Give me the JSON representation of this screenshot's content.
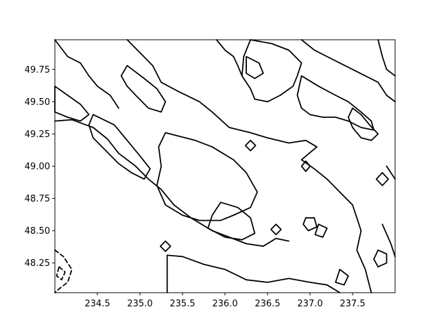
{
  "chart_data": {
    "type": "contour",
    "title": "",
    "xlabel": "",
    "ylabel": "",
    "xlim": [
      234.0,
      238.0
    ],
    "ylim": [
      48.02,
      49.98
    ],
    "xticks": [
      234.5,
      235.0,
      235.5,
      236.0,
      236.5,
      237.0,
      237.5
    ],
    "xtick_labels": [
      "234.5",
      "235.0",
      "235.5",
      "236.0",
      "236.5",
      "237.0",
      "237.5"
    ],
    "yticks": [
      48.25,
      48.5,
      48.75,
      49.0,
      49.25,
      49.5,
      49.75
    ],
    "ytick_labels": [
      "48.25",
      "48.50",
      "48.75",
      "49.00",
      "49.25",
      "49.50",
      "49.75"
    ],
    "grid": false,
    "line_color": "#000000",
    "contours": [
      {
        "style": "solid",
        "closed": false,
        "points": [
          [
            235.32,
            48.02
          ],
          [
            235.32,
            48.31
          ],
          [
            235.5,
            48.3
          ],
          [
            235.75,
            48.24
          ],
          [
            236.0,
            48.2
          ],
          [
            236.25,
            48.12
          ],
          [
            236.5,
            48.1
          ],
          [
            236.75,
            48.13
          ],
          [
            237.0,
            48.1
          ],
          [
            237.2,
            48.08
          ],
          [
            237.35,
            48.02
          ]
        ]
      },
      {
        "style": "solid",
        "closed": false,
        "points": [
          [
            234.0,
            49.35
          ],
          [
            234.2,
            49.36
          ],
          [
            234.45,
            49.3
          ],
          [
            234.62,
            49.21
          ],
          [
            234.75,
            49.1
          ],
          [
            234.95,
            49.0
          ],
          [
            235.1,
            48.9
          ],
          [
            235.25,
            48.82
          ],
          [
            235.4,
            48.7
          ],
          [
            235.6,
            48.6
          ],
          [
            235.85,
            48.5
          ],
          [
            236.05,
            48.45
          ],
          [
            236.25,
            48.4
          ],
          [
            236.45,
            48.38
          ],
          [
            236.6,
            48.44
          ],
          [
            236.75,
            48.42
          ]
        ]
      },
      {
        "style": "solid",
        "closed": false,
        "points": [
          [
            234.85,
            49.98
          ],
          [
            235.0,
            49.88
          ],
          [
            235.15,
            49.78
          ],
          [
            235.25,
            49.65
          ],
          [
            235.45,
            49.58
          ],
          [
            235.7,
            49.5
          ],
          [
            235.85,
            49.42
          ],
          [
            236.05,
            49.3
          ],
          [
            236.3,
            49.26
          ],
          [
            236.5,
            49.22
          ],
          [
            236.75,
            49.18
          ],
          [
            236.95,
            49.2
          ],
          [
            237.08,
            49.15
          ],
          [
            236.9,
            49.05
          ],
          [
            237.05,
            48.98
          ],
          [
            237.2,
            48.9
          ],
          [
            237.35,
            48.8
          ],
          [
            237.5,
            48.7
          ],
          [
            237.6,
            48.5
          ],
          [
            237.55,
            48.35
          ],
          [
            237.65,
            48.2
          ],
          [
            237.72,
            48.02
          ]
        ]
      },
      {
        "style": "solid",
        "closed": true,
        "points": [
          [
            235.3,
            49.26
          ],
          [
            235.65,
            49.2
          ],
          [
            235.85,
            49.15
          ],
          [
            236.1,
            49.05
          ],
          [
            236.25,
            48.95
          ],
          [
            236.38,
            48.8
          ],
          [
            236.3,
            48.68
          ],
          [
            236.1,
            48.62
          ],
          [
            235.95,
            48.58
          ],
          [
            235.7,
            48.58
          ],
          [
            235.5,
            48.62
          ],
          [
            235.3,
            48.7
          ],
          [
            235.2,
            48.85
          ],
          [
            235.25,
            49.0
          ],
          [
            235.22,
            49.15
          ]
        ]
      },
      {
        "style": "solid",
        "closed": true,
        "points": [
          [
            235.95,
            48.72
          ],
          [
            236.15,
            48.68
          ],
          [
            236.3,
            48.6
          ],
          [
            236.35,
            48.48
          ],
          [
            236.2,
            48.43
          ],
          [
            236.0,
            48.45
          ],
          [
            235.8,
            48.52
          ],
          [
            235.85,
            48.62
          ]
        ]
      },
      {
        "style": "solid",
        "closed": true,
        "points": [
          [
            234.45,
            49.4
          ],
          [
            234.7,
            49.32
          ],
          [
            234.85,
            49.2
          ],
          [
            235.0,
            49.08
          ],
          [
            235.12,
            48.98
          ],
          [
            235.05,
            48.9
          ],
          [
            234.9,
            48.95
          ],
          [
            234.75,
            49.02
          ],
          [
            234.6,
            49.12
          ],
          [
            234.45,
            49.22
          ],
          [
            234.4,
            49.32
          ]
        ]
      },
      {
        "style": "solid",
        "closed": true,
        "points": [
          [
            234.85,
            49.78
          ],
          [
            235.05,
            49.68
          ],
          [
            235.2,
            49.6
          ],
          [
            235.3,
            49.5
          ],
          [
            235.25,
            49.42
          ],
          [
            235.1,
            49.45
          ],
          [
            234.95,
            49.55
          ],
          [
            234.85,
            49.62
          ],
          [
            234.78,
            49.7
          ]
        ]
      },
      {
        "style": "solid",
        "closed": true,
        "points": [
          [
            236.3,
            49.98
          ],
          [
            236.55,
            49.95
          ],
          [
            236.75,
            49.9
          ],
          [
            236.9,
            49.8
          ],
          [
            236.85,
            49.7
          ],
          [
            236.8,
            49.62
          ],
          [
            236.65,
            49.55
          ],
          [
            236.5,
            49.5
          ],
          [
            236.35,
            49.52
          ],
          [
            236.3,
            49.6
          ],
          [
            236.2,
            49.7
          ],
          [
            236.22,
            49.85
          ]
        ]
      },
      {
        "style": "solid",
        "closed": true,
        "points": [
          [
            236.25,
            49.85
          ],
          [
            236.4,
            49.8
          ],
          [
            236.45,
            49.72
          ],
          [
            236.35,
            49.68
          ],
          [
            236.25,
            49.72
          ]
        ]
      },
      {
        "style": "solid",
        "closed": false,
        "points": [
          [
            236.9,
            49.98
          ],
          [
            237.05,
            49.9
          ],
          [
            237.2,
            49.85
          ],
          [
            237.35,
            49.8
          ],
          [
            237.5,
            49.75
          ],
          [
            237.65,
            49.7
          ],
          [
            237.8,
            49.65
          ],
          [
            237.9,
            49.55
          ],
          [
            238.0,
            49.5
          ]
        ]
      },
      {
        "style": "solid",
        "closed": true,
        "points": [
          [
            236.9,
            49.7
          ],
          [
            237.1,
            49.62
          ],
          [
            237.3,
            49.55
          ],
          [
            237.45,
            49.5
          ],
          [
            237.6,
            49.42
          ],
          [
            237.72,
            49.35
          ],
          [
            237.75,
            49.28
          ],
          [
            237.6,
            49.3
          ],
          [
            237.45,
            49.35
          ],
          [
            237.3,
            49.38
          ],
          [
            237.15,
            49.38
          ],
          [
            237.0,
            49.4
          ],
          [
            236.9,
            49.45
          ],
          [
            236.85,
            49.55
          ]
        ]
      },
      {
        "style": "solid",
        "closed": false,
        "points": [
          [
            237.8,
            49.98
          ],
          [
            237.85,
            49.85
          ],
          [
            237.9,
            49.75
          ],
          [
            238.0,
            49.7
          ]
        ]
      },
      {
        "style": "solid",
        "closed": false,
        "points": [
          [
            235.9,
            49.98
          ],
          [
            236.0,
            49.9
          ],
          [
            236.1,
            49.85
          ],
          [
            236.15,
            49.78
          ],
          [
            236.2,
            49.7
          ]
        ]
      },
      {
        "style": "solid",
        "closed": false,
        "points": [
          [
            234.0,
            49.98
          ],
          [
            234.15,
            49.85
          ],
          [
            234.3,
            49.8
          ],
          [
            234.4,
            49.7
          ],
          [
            234.5,
            49.62
          ],
          [
            234.65,
            49.55
          ],
          [
            234.75,
            49.45
          ]
        ]
      },
      {
        "style": "solid",
        "closed": true,
        "points": [
          [
            234.0,
            49.62
          ],
          [
            234.15,
            49.55
          ],
          [
            234.3,
            49.48
          ],
          [
            234.4,
            49.4
          ],
          [
            234.3,
            49.35
          ],
          [
            234.15,
            49.38
          ],
          [
            234.0,
            49.42
          ]
        ]
      },
      {
        "style": "solid",
        "closed": true,
        "points": [
          [
            237.5,
            49.45
          ],
          [
            237.6,
            49.4
          ],
          [
            237.7,
            49.32
          ],
          [
            237.8,
            49.25
          ],
          [
            237.72,
            49.2
          ],
          [
            237.6,
            49.22
          ],
          [
            237.5,
            49.3
          ],
          [
            237.45,
            49.38
          ]
        ]
      },
      {
        "style": "solid",
        "closed": false,
        "points": [
          [
            237.85,
            48.55
          ],
          [
            237.95,
            48.4
          ],
          [
            238.0,
            48.3
          ]
        ]
      },
      {
        "style": "solid",
        "closed": false,
        "points": [
          [
            237.9,
            49.0
          ],
          [
            238.0,
            48.9
          ]
        ]
      },
      {
        "style": "solid",
        "closed": true,
        "points": [
          [
            237.8,
            48.35
          ],
          [
            237.9,
            48.32
          ],
          [
            237.9,
            48.25
          ],
          [
            237.8,
            48.22
          ],
          [
            237.75,
            48.28
          ]
        ]
      },
      {
        "style": "solid",
        "closed": true,
        "points": [
          [
            236.95,
            48.6
          ],
          [
            237.05,
            48.6
          ],
          [
            237.08,
            48.53
          ],
          [
            236.98,
            48.5
          ],
          [
            236.92,
            48.55
          ]
        ]
      },
      {
        "style": "solid",
        "closed": true,
        "points": [
          [
            237.1,
            48.55
          ],
          [
            237.2,
            48.52
          ],
          [
            237.15,
            48.45
          ],
          [
            237.06,
            48.47
          ]
        ]
      },
      {
        "style": "solid",
        "closed": true,
        "points": [
          [
            237.35,
            48.2
          ],
          [
            237.45,
            48.15
          ],
          [
            237.4,
            48.08
          ],
          [
            237.3,
            48.1
          ]
        ]
      },
      {
        "style": "solid",
        "closed": true,
        "points": [
          [
            235.3,
            48.42
          ],
          [
            235.36,
            48.38
          ],
          [
            235.3,
            48.34
          ],
          [
            235.24,
            48.38
          ]
        ]
      },
      {
        "style": "solid",
        "closed": true,
        "points": [
          [
            236.3,
            49.2
          ],
          [
            236.36,
            49.16
          ],
          [
            236.3,
            49.12
          ],
          [
            236.24,
            49.16
          ]
        ]
      },
      {
        "style": "solid",
        "closed": true,
        "points": [
          [
            236.6,
            48.55
          ],
          [
            236.66,
            48.51
          ],
          [
            236.6,
            48.47
          ],
          [
            236.54,
            48.51
          ]
        ]
      },
      {
        "style": "solid",
        "closed": true,
        "points": [
          [
            237.85,
            48.95
          ],
          [
            237.92,
            48.9
          ],
          [
            237.85,
            48.85
          ],
          [
            237.78,
            48.9
          ]
        ]
      },
      {
        "style": "solid",
        "closed": true,
        "points": [
          [
            236.95,
            49.04
          ],
          [
            237.0,
            49.0
          ],
          [
            236.95,
            48.96
          ],
          [
            236.9,
            49.0
          ]
        ]
      },
      {
        "style": "dashed",
        "closed": false,
        "points": [
          [
            234.0,
            48.35
          ],
          [
            234.1,
            48.3
          ],
          [
            234.2,
            48.2
          ],
          [
            234.15,
            48.1
          ],
          [
            234.05,
            48.05
          ],
          [
            234.0,
            48.02
          ]
        ]
      },
      {
        "style": "dashed",
        "closed": true,
        "points": [
          [
            234.05,
            48.22
          ],
          [
            234.12,
            48.18
          ],
          [
            234.08,
            48.12
          ],
          [
            234.02,
            48.15
          ]
        ]
      }
    ]
  }
}
